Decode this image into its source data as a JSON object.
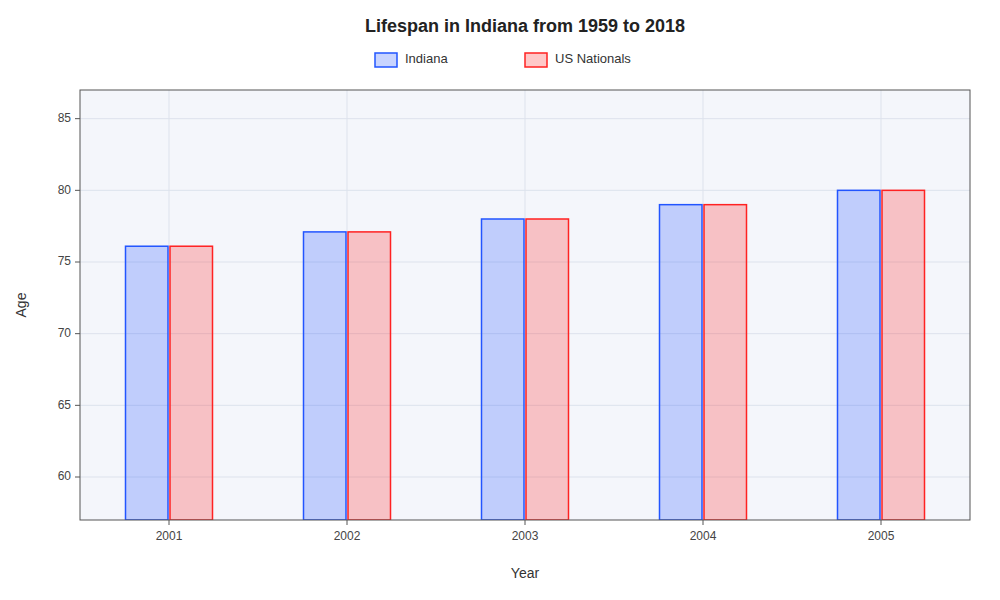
{
  "chart_data": {
    "type": "bar",
    "title": "Lifespan in Indiana from 1959 to 2018",
    "x_label": "Year",
    "y_label": "Age",
    "categories": [
      "2001",
      "2002",
      "2003",
      "2004",
      "2005"
    ],
    "series": [
      {
        "name": "Indiana",
        "color": "#2255ff",
        "values": [
          76.1,
          77.1,
          78.0,
          79.0,
          80.0
        ]
      },
      {
        "name": "US Nationals",
        "color": "#ff2222",
        "values": [
          76.1,
          77.1,
          78.0,
          79.0,
          80.0
        ]
      }
    ],
    "ylim": [
      57,
      87
    ],
    "yticks": [
      60,
      65,
      70,
      75,
      80,
      85
    ],
    "grid": true,
    "legend": "top"
  }
}
